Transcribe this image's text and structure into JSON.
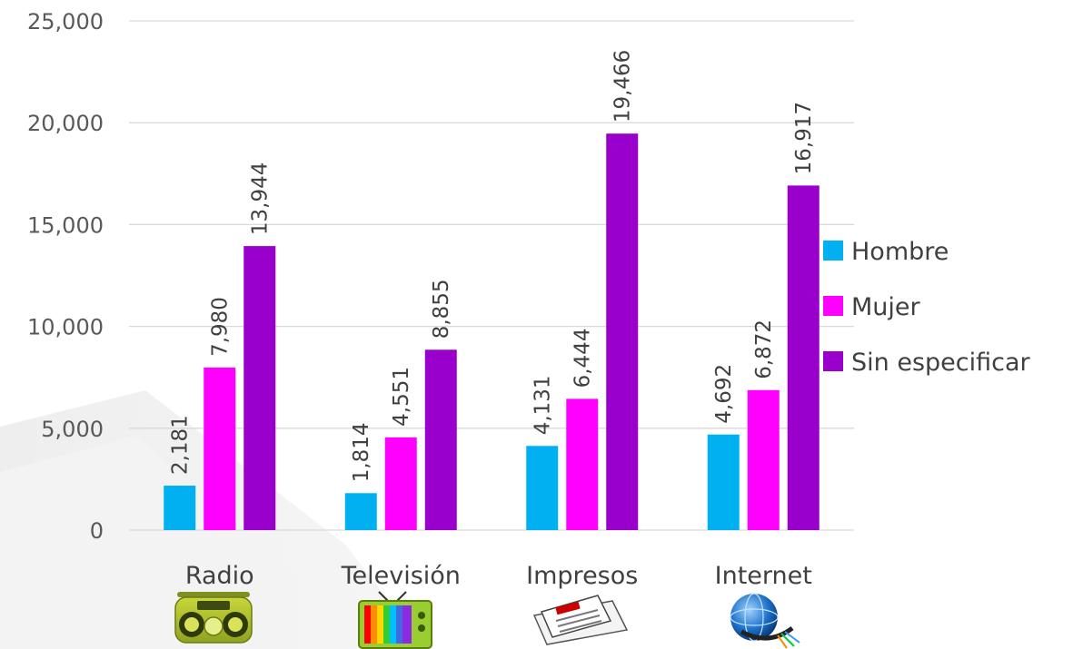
{
  "chart_data": {
    "type": "bar",
    "categories": [
      "Radio",
      "Televisión",
      "Impresos",
      "Internet"
    ],
    "category_icons": [
      "boombox-radio-icon",
      "color-television-icon",
      "newspaper-icon",
      "globe-network-icon"
    ],
    "series": [
      {
        "name": "Hombre",
        "values": [
          2181,
          1814,
          4131,
          4692
        ],
        "color": "#00b0f0"
      },
      {
        "name": "Mujer",
        "values": [
          7980,
          4551,
          6444,
          6872
        ],
        "color": "#ff00ff"
      },
      {
        "name": "Sin especificar",
        "values": [
          13944,
          8855,
          19466,
          16917
        ],
        "color": "#9900cc"
      }
    ],
    "data_labels": [
      [
        "2,181",
        "1,814",
        "4,131",
        "4,692"
      ],
      [
        "7,980",
        "4,551",
        "6,444",
        "6,872"
      ],
      [
        "13,944",
        "8,855",
        "19,466",
        "16,917"
      ]
    ],
    "ylim": [
      0,
      25000
    ],
    "yticks": [
      0,
      5000,
      10000,
      15000,
      20000,
      25000
    ],
    "ytick_labels": [
      "0",
      "5,000",
      "10,000",
      "15,000",
      "20,000",
      "25,000"
    ],
    "grid": true,
    "legend_position": "right",
    "title": "",
    "xlabel": "",
    "ylabel": ""
  }
}
